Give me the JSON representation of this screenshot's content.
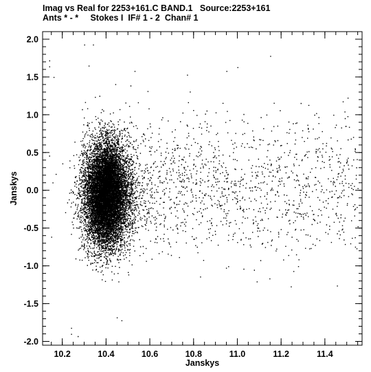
{
  "chart_data": {
    "type": "scatter",
    "title_line1": "Imag vs Real for 2253+161.C BAND.1   Source:2253+161",
    "title_line2": "Ants * - *     Stokes I  IF# 1 - 2  Chan# 1",
    "xlabel": "Janskys",
    "ylabel": "Janskys",
    "xlim": [
      10.11,
      11.57
    ],
    "ylim": [
      -2.05,
      2.1
    ],
    "x_ticks": [
      {
        "value": 10.2,
        "label": "10.2"
      },
      {
        "value": 10.4,
        "label": "10.4"
      },
      {
        "value": 10.6,
        "label": "10.6"
      },
      {
        "value": 10.8,
        "label": "10.8"
      },
      {
        "value": 11.0,
        "label": "11.0"
      },
      {
        "value": 11.2,
        "label": "11.2"
      },
      {
        "value": 11.4,
        "label": "11.4"
      }
    ],
    "y_ticks": [
      {
        "value": 2.0,
        "label": "2.0"
      },
      {
        "value": 1.5,
        "label": "1.5"
      },
      {
        "value": 1.0,
        "label": "1.0"
      },
      {
        "value": 0.5,
        "label": "0.5"
      },
      {
        "value": 0.0,
        "label": "0.0"
      },
      {
        "value": -0.5,
        "label": "-0.5"
      },
      {
        "value": -1.0,
        "label": "-1.0"
      },
      {
        "value": -1.5,
        "label": "-1.5"
      },
      {
        "value": -2.0,
        "label": "-2.0"
      }
    ],
    "x_minor_step": 0.05,
    "y_minor_step": 0.1,
    "grid": false,
    "point_color": "#000000",
    "dense_cluster": {
      "x_center": 10.4,
      "y_center": -0.05,
      "x_sd": 0.048,
      "y_sd": 0.34,
      "count": 26000
    },
    "diffuse_cloud": {
      "x_range": [
        10.5,
        11.55
      ],
      "y_center": 0.05,
      "y_sd": 0.45,
      "count": 1400
    },
    "outliers": [
      {
        "x": 10.14,
        "y": 1.72
      },
      {
        "x": 10.14,
        "y": 1.64
      },
      {
        "x": 10.3,
        "y": 1.93
      },
      {
        "x": 10.34,
        "y": 1.93
      },
      {
        "x": 10.25,
        "y": 2.1
      },
      {
        "x": 10.27,
        "y": -1.93
      },
      {
        "x": 10.24,
        "y": -1.9
      },
      {
        "x": 10.24,
        "y": -1.82
      },
      {
        "x": 10.95,
        "y": 1.58
      },
      {
        "x": 11.0,
        "y": 1.63
      },
      {
        "x": 11.15,
        "y": 1.78
      },
      {
        "x": 10.77,
        "y": 1.53
      },
      {
        "x": 10.32,
        "y": 1.65
      },
      {
        "x": 10.16,
        "y": 1.5
      },
      {
        "x": 10.53,
        "y": 1.58
      },
      {
        "x": 10.47,
        "y": -1.72
      }
    ]
  }
}
